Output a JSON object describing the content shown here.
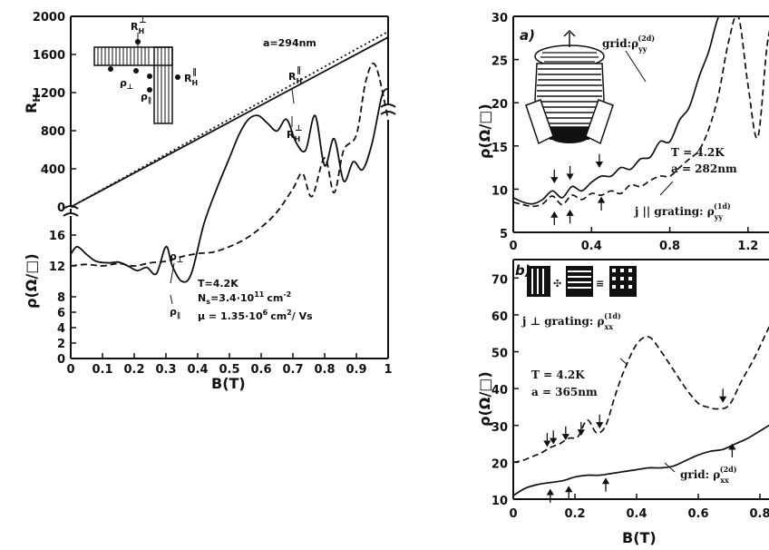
{
  "chart_data": [
    {
      "type": "line",
      "id": "left",
      "xlabel": "B(T)",
      "x_ticks": [
        "0",
        "0.1",
        "0.2",
        "0.3",
        "0.4",
        "0.5",
        "0.6",
        "0.7",
        "0.8",
        "0.9",
        "1"
      ],
      "xlim": [
        0,
        1
      ],
      "top": {
        "ylabel": "R_H(Ω)",
        "ylim": [
          0,
          2000
        ],
        "y_ticks": [
          "0",
          "400",
          "800",
          "1200",
          "1600",
          "2000"
        ],
        "series": [
          {
            "name": "R_H^⊥",
            "style": "solid",
            "x": [
              0,
              1
            ],
            "y": [
              0,
              1780
            ]
          },
          {
            "name": "R_H^∥",
            "style": "dotted",
            "x": [
              0,
              1
            ],
            "y": [
              0,
              1840
            ]
          }
        ]
      },
      "bottom": {
        "ylabel": "ρ(Ω/□)",
        "ylim": [
          0,
          18
        ],
        "y_ticks": [
          "0",
          "2",
          "4",
          "6",
          "8",
          "12",
          "16"
        ],
        "series": [
          {
            "name": "ρ_⊥",
            "style": "solid",
            "x": [
              0,
              0.02,
              0.05,
              0.08,
              0.12,
              0.15,
              0.18,
              0.21,
              0.24,
              0.27,
              0.3,
              0.32,
              0.35,
              0.38,
              0.42,
              0.46,
              0.5,
              0.53,
              0.56,
              0.59,
              0.62,
              0.65,
              0.68,
              0.71,
              0.74,
              0.77,
              0.8,
              0.83,
              0.86,
              0.89,
              0.92,
              0.95,
              0.98,
              1.0
            ],
            "y": [
              13.5,
              14.5,
              13.5,
              12.6,
              12.4,
              12.5,
              12.0,
              11.4,
              11.8,
              11.0,
              14.5,
              12.0,
              10.0,
              11.0,
              17.5,
              22.0,
              26.0,
              29.0,
              31.0,
              31.5,
              30.5,
              29.5,
              31.0,
              28.0,
              27.0,
              31.5,
              25.0,
              28.5,
              23.0,
              25.5,
              24.5,
              28.0,
              34.0,
              35.0
            ]
          },
          {
            "name": "ρ_∥",
            "style": "dashed",
            "x": [
              0,
              0.05,
              0.1,
              0.15,
              0.2,
              0.25,
              0.3,
              0.35,
              0.4,
              0.45,
              0.5,
              0.55,
              0.6,
              0.65,
              0.7,
              0.73,
              0.76,
              0.8,
              0.83,
              0.86,
              0.9,
              0.93,
              0.96,
              1.0
            ],
            "y": [
              12.0,
              12.2,
              12.0,
              12.3,
              12.0,
              12.4,
              12.6,
              13.2,
              13.6,
              13.8,
              14.5,
              15.5,
              17.0,
              19.0,
              22.0,
              24.0,
              21.0,
              26.0,
              21.5,
              27.0,
              29.0,
              36.0,
              38.0,
              31.0
            ]
          }
        ]
      },
      "annotations": {
        "a": "a=294nm",
        "T": "T=4.2K",
        "Ns": "N_s=3.4·10^11 cm^-2",
        "mu": "μ=1.35·10^6 cm²/Vs",
        "rperp": "ρ_⊥",
        "rpar": "ρ_∥",
        "RHpar_label": "R_H^∥",
        "RHperp_label": "R_H^⊥"
      }
    },
    {
      "type": "line",
      "id": "a",
      "panel_label": "a)",
      "ylabel": "ρ(Ω/□)",
      "xlim": [
        0,
        1.4
      ],
      "ylim": [
        5,
        30
      ],
      "x_ticks": [
        "0",
        "0.4",
        "0.8",
        "1.2"
      ],
      "y_ticks": [
        "5",
        "10",
        "15",
        "20",
        "25",
        "30"
      ],
      "series": [
        {
          "name": "grid: ρ_yy^(2d)",
          "style": "solid",
          "x": [
            0,
            0.05,
            0.1,
            0.15,
            0.2,
            0.25,
            0.3,
            0.35,
            0.4,
            0.45,
            0.5,
            0.55,
            0.6,
            0.65,
            0.7,
            0.75,
            0.8,
            0.85,
            0.9,
            0.95,
            1.0,
            1.05,
            1.1,
            1.15,
            1.2,
            1.25,
            1.3,
            1.35,
            1.4
          ],
          "y": [
            9.0,
            8.5,
            8.3,
            8.8,
            9.8,
            9.0,
            10.3,
            9.8,
            10.8,
            11.5,
            11.5,
            12.5,
            12.3,
            13.5,
            13.7,
            15.5,
            15.5,
            18.0,
            19.5,
            23.0,
            26.0,
            30.0,
            31.0,
            31.0,
            31.0,
            31.0,
            31.0,
            31.0,
            31.0
          ]
        },
        {
          "name": "j ∥ grating: ρ_yy^(1d)",
          "style": "dashed",
          "x": [
            0,
            0.05,
            0.1,
            0.15,
            0.2,
            0.25,
            0.3,
            0.35,
            0.4,
            0.45,
            0.5,
            0.55,
            0.6,
            0.65,
            0.7,
            0.75,
            0.8,
            0.85,
            0.9,
            0.95,
            1.0,
            1.05,
            1.1,
            1.15,
            1.2,
            1.25,
            1.3,
            1.35,
            1.4
          ],
          "y": [
            8.5,
            8.2,
            8.0,
            8.3,
            9.2,
            8.2,
            9.3,
            8.8,
            9.5,
            9.3,
            9.8,
            9.5,
            10.5,
            10.3,
            11.0,
            11.5,
            11.5,
            12.5,
            13.5,
            14.5,
            17.0,
            21.0,
            27.0,
            30.0,
            22.0,
            16.0,
            27.0,
            31.0,
            31.0
          ]
        }
      ],
      "annotations": {
        "T": "T = 4.2K",
        "a": "a = 282nm"
      }
    },
    {
      "type": "line",
      "id": "b",
      "panel_label": "b)",
      "ylabel": "ρ(Ω/□)",
      "xlabel": "B(T)",
      "xlim": [
        0,
        0.9
      ],
      "ylim": [
        10,
        75
      ],
      "x_ticks": [
        "0",
        "0.2",
        "0.4",
        "0.6",
        "0.8"
      ],
      "y_ticks": [
        "10",
        "20",
        "30",
        "40",
        "50",
        "60",
        "70"
      ],
      "series": [
        {
          "name": "j ⊥ grating: ρ_xx^(1d)",
          "style": "dashed",
          "x": [
            0,
            0.03,
            0.06,
            0.09,
            0.12,
            0.15,
            0.18,
            0.21,
            0.24,
            0.27,
            0.3,
            0.33,
            0.36,
            0.4,
            0.44,
            0.48,
            0.52,
            0.56,
            0.6,
            0.63,
            0.66,
            0.7,
            0.74,
            0.78,
            0.82,
            0.86,
            0.9
          ],
          "y": [
            20.0,
            20.5,
            21.5,
            22.5,
            24.0,
            25.0,
            26.5,
            27.0,
            31.5,
            28.0,
            30.0,
            38.0,
            45.0,
            52.0,
            54.0,
            50.0,
            45.0,
            40.0,
            36.0,
            35.0,
            34.5,
            35.5,
            42.0,
            48.0,
            55.0,
            62.0,
            70.0
          ]
        },
        {
          "name": "grid: ρ_xx^(2d)",
          "style": "solid",
          "x": [
            0,
            0.04,
            0.08,
            0.12,
            0.16,
            0.2,
            0.24,
            0.28,
            0.32,
            0.36,
            0.4,
            0.44,
            0.48,
            0.52,
            0.56,
            0.6,
            0.64,
            0.68,
            0.72,
            0.76,
            0.8,
            0.84,
            0.88,
            0.9
          ],
          "y": [
            11.0,
            13.0,
            14.0,
            14.5,
            15.0,
            16.0,
            16.5,
            16.5,
            17.0,
            17.5,
            18.0,
            18.5,
            18.5,
            19.0,
            20.5,
            22.0,
            23.0,
            23.5,
            25.0,
            26.5,
            28.5,
            30.5,
            32.0,
            33.0
          ]
        }
      ],
      "annotations": {
        "T": "T = 4.2K",
        "a": "a = 365nm"
      }
    }
  ],
  "text": {
    "left_x_title": "B(T)",
    "left_y_top": "R_H(Ω)",
    "left_y_bottom": "ρ(Ω/□)",
    "right_y_a": "ρ(Ω/□)",
    "right_y_b": "ρ(Ω/□)",
    "right_x_title": "B(T)",
    "a_label": "a)",
    "b_label": "b)",
    "grid_yy": "grid:ρ",
    "grid_yy_sup": "(2d)",
    "grid_yy_sub": "yy",
    "jpar": "j || grating: ρ",
    "jpar_sup": "(1d)",
    "jpar_sub": "yy",
    "jperp": "j ⊥ grating: ρ",
    "jperp_sup": "(1d)",
    "jperp_sub": "xx",
    "grid_xx": "grid: ρ",
    "grid_xx_sup": "(2d)",
    "grid_xx_sub": "xx",
    "a_T": "T = 4.2K",
    "a_a": "a = 282nm",
    "b_T": "T = 4.2K",
    "b_a": "a = 365nm",
    "L_a": "a=294nm",
    "L_T": "T=4.2K",
    "L_Ns": "N",
    "L_Ns_sub": "s",
    "L_Ns_rest": "=3.4·10",
    "L_Ns_exp": "11",
    "L_Ns_unit": "cm",
    "L_Ns_unit_exp": "-2",
    "L_mu": "μ = 1.35·10",
    "L_mu_exp": "6",
    "L_mu_unit": "cm",
    "L_mu_unit_exp": "2",
    "L_mu_tail": "/ Vs",
    "L_rperp": "ρ",
    "L_rperp_sub": "⊥",
    "L_rpar": "ρ",
    "L_rpar_sub": "∥",
    "RH": "R",
    "RH_sub": "H",
    "RH_perp_sup": "⊥",
    "RH_par_sup": "∥"
  }
}
